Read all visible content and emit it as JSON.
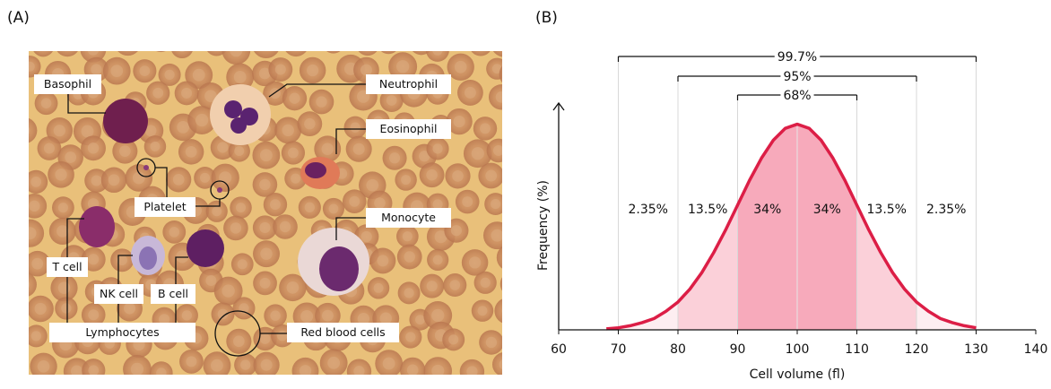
{
  "panel_a": {
    "label": "(A)",
    "cells": {
      "basophil": "Basophil",
      "neutrophil": "Neutrophil",
      "eosinophil": "Eosinophil",
      "platelet": "Platelet",
      "monocyte": "Monocyte",
      "t_cell": "T cell",
      "nk_cell": "NK cell",
      "b_cell": "B cell",
      "lymphocytes": "Lymphocytes",
      "red_blood_cells": "Red blood cells"
    }
  },
  "chart_data": {
    "type": "area",
    "panel_label": "(B)",
    "xlabel": "Cell volume (fl)",
    "ylabel": "Frequency (%)",
    "color": "#dc1e46",
    "x": [
      68,
      70,
      72,
      74,
      76,
      78,
      80,
      82,
      84,
      86,
      88,
      90,
      92,
      94,
      96,
      98,
      100,
      102,
      104,
      106,
      108,
      110,
      112,
      114,
      116,
      118,
      120,
      122,
      124,
      126,
      128,
      130
    ],
    "values": [
      0.02,
      0.04,
      0.08,
      0.14,
      0.22,
      0.36,
      0.54,
      0.79,
      1.11,
      1.5,
      1.94,
      2.42,
      2.9,
      3.33,
      3.68,
      3.91,
      3.99,
      3.91,
      3.68,
      3.33,
      2.9,
      2.42,
      1.94,
      1.5,
      1.11,
      0.79,
      0.54,
      0.36,
      0.22,
      0.14,
      0.08,
      0.04
    ],
    "xlim": [
      60,
      140
    ],
    "xticks": [
      60,
      70,
      80,
      90,
      100,
      110,
      120,
      130,
      140
    ],
    "ylim": [
      0,
      4.4
    ],
    "regions": {
      "edges": [
        70,
        80,
        90,
        100,
        110,
        120,
        130
      ],
      "values": [
        2.35,
        13.5,
        34,
        34,
        13.5,
        2.35
      ],
      "value_labels": [
        "2.35%",
        "13.5%",
        "34%",
        "34%",
        "13.5%",
        "2.35%"
      ],
      "colors": [
        "#fdeef1",
        "#fbd0d9",
        "#f7aabb",
        "#f7aabb",
        "#fbd0d9",
        "#fdeef1"
      ]
    },
    "intervals": [
      {
        "value": 99.7,
        "label": "99.7%",
        "range": [
          70,
          130
        ]
      },
      {
        "value": 95,
        "label": "95%",
        "range": [
          80,
          120
        ]
      },
      {
        "value": 68,
        "label": "68%",
        "range": [
          90,
          110
        ]
      }
    ]
  }
}
